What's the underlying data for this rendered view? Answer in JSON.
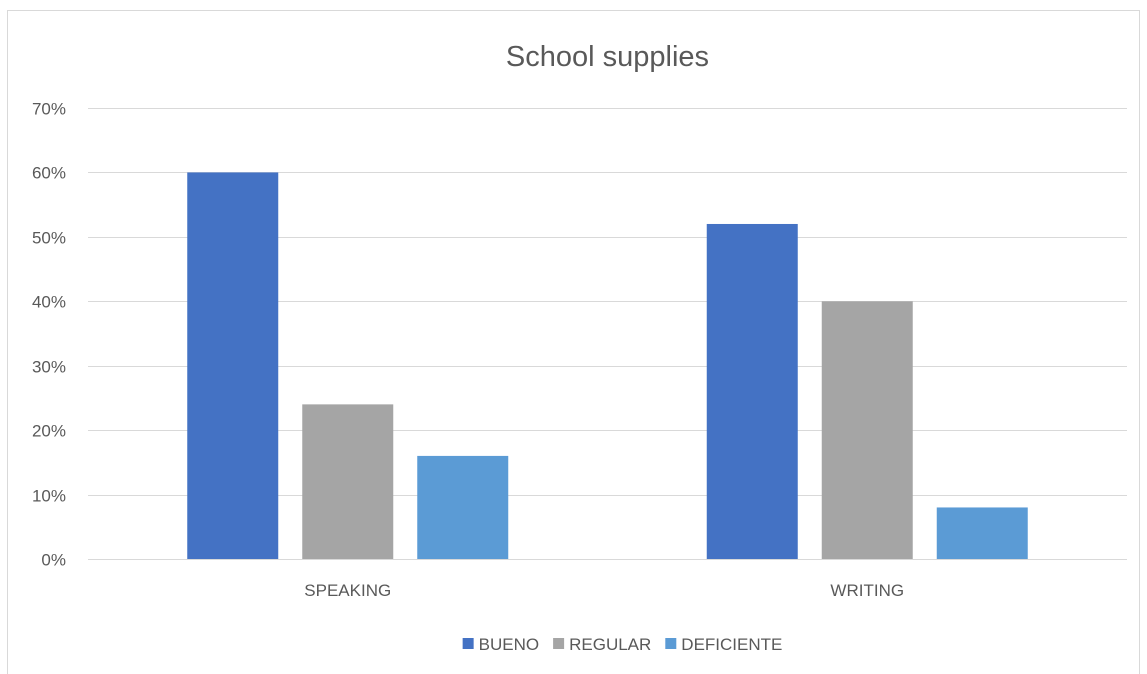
{
  "chart_data": {
    "type": "bar",
    "title": "School supplies",
    "xlabel": "",
    "ylabel": "",
    "categories": [
      "SPEAKING",
      "WRITING"
    ],
    "series": [
      {
        "name": "BUENO",
        "values": [
          0.6,
          0.52
        ],
        "color": "#4472c4"
      },
      {
        "name": "REGULAR",
        "values": [
          0.24,
          0.4
        ],
        "color": "#a5a5a5"
      },
      {
        "name": "DEFICIENTE",
        "values": [
          0.16,
          0.08
        ],
        "color": "#5b9bd5"
      }
    ],
    "ylim": [
      0,
      0.7
    ],
    "yticks": [
      0,
      0.1,
      0.2,
      0.3,
      0.4,
      0.5,
      0.6,
      0.7
    ],
    "ytick_labels": [
      "0%",
      "10%",
      "20%",
      "30%",
      "40%",
      "50%",
      "60%",
      "70%"
    ],
    "grid": true,
    "gridline_color": "#d9d9d9",
    "legend_position": "bottom"
  }
}
